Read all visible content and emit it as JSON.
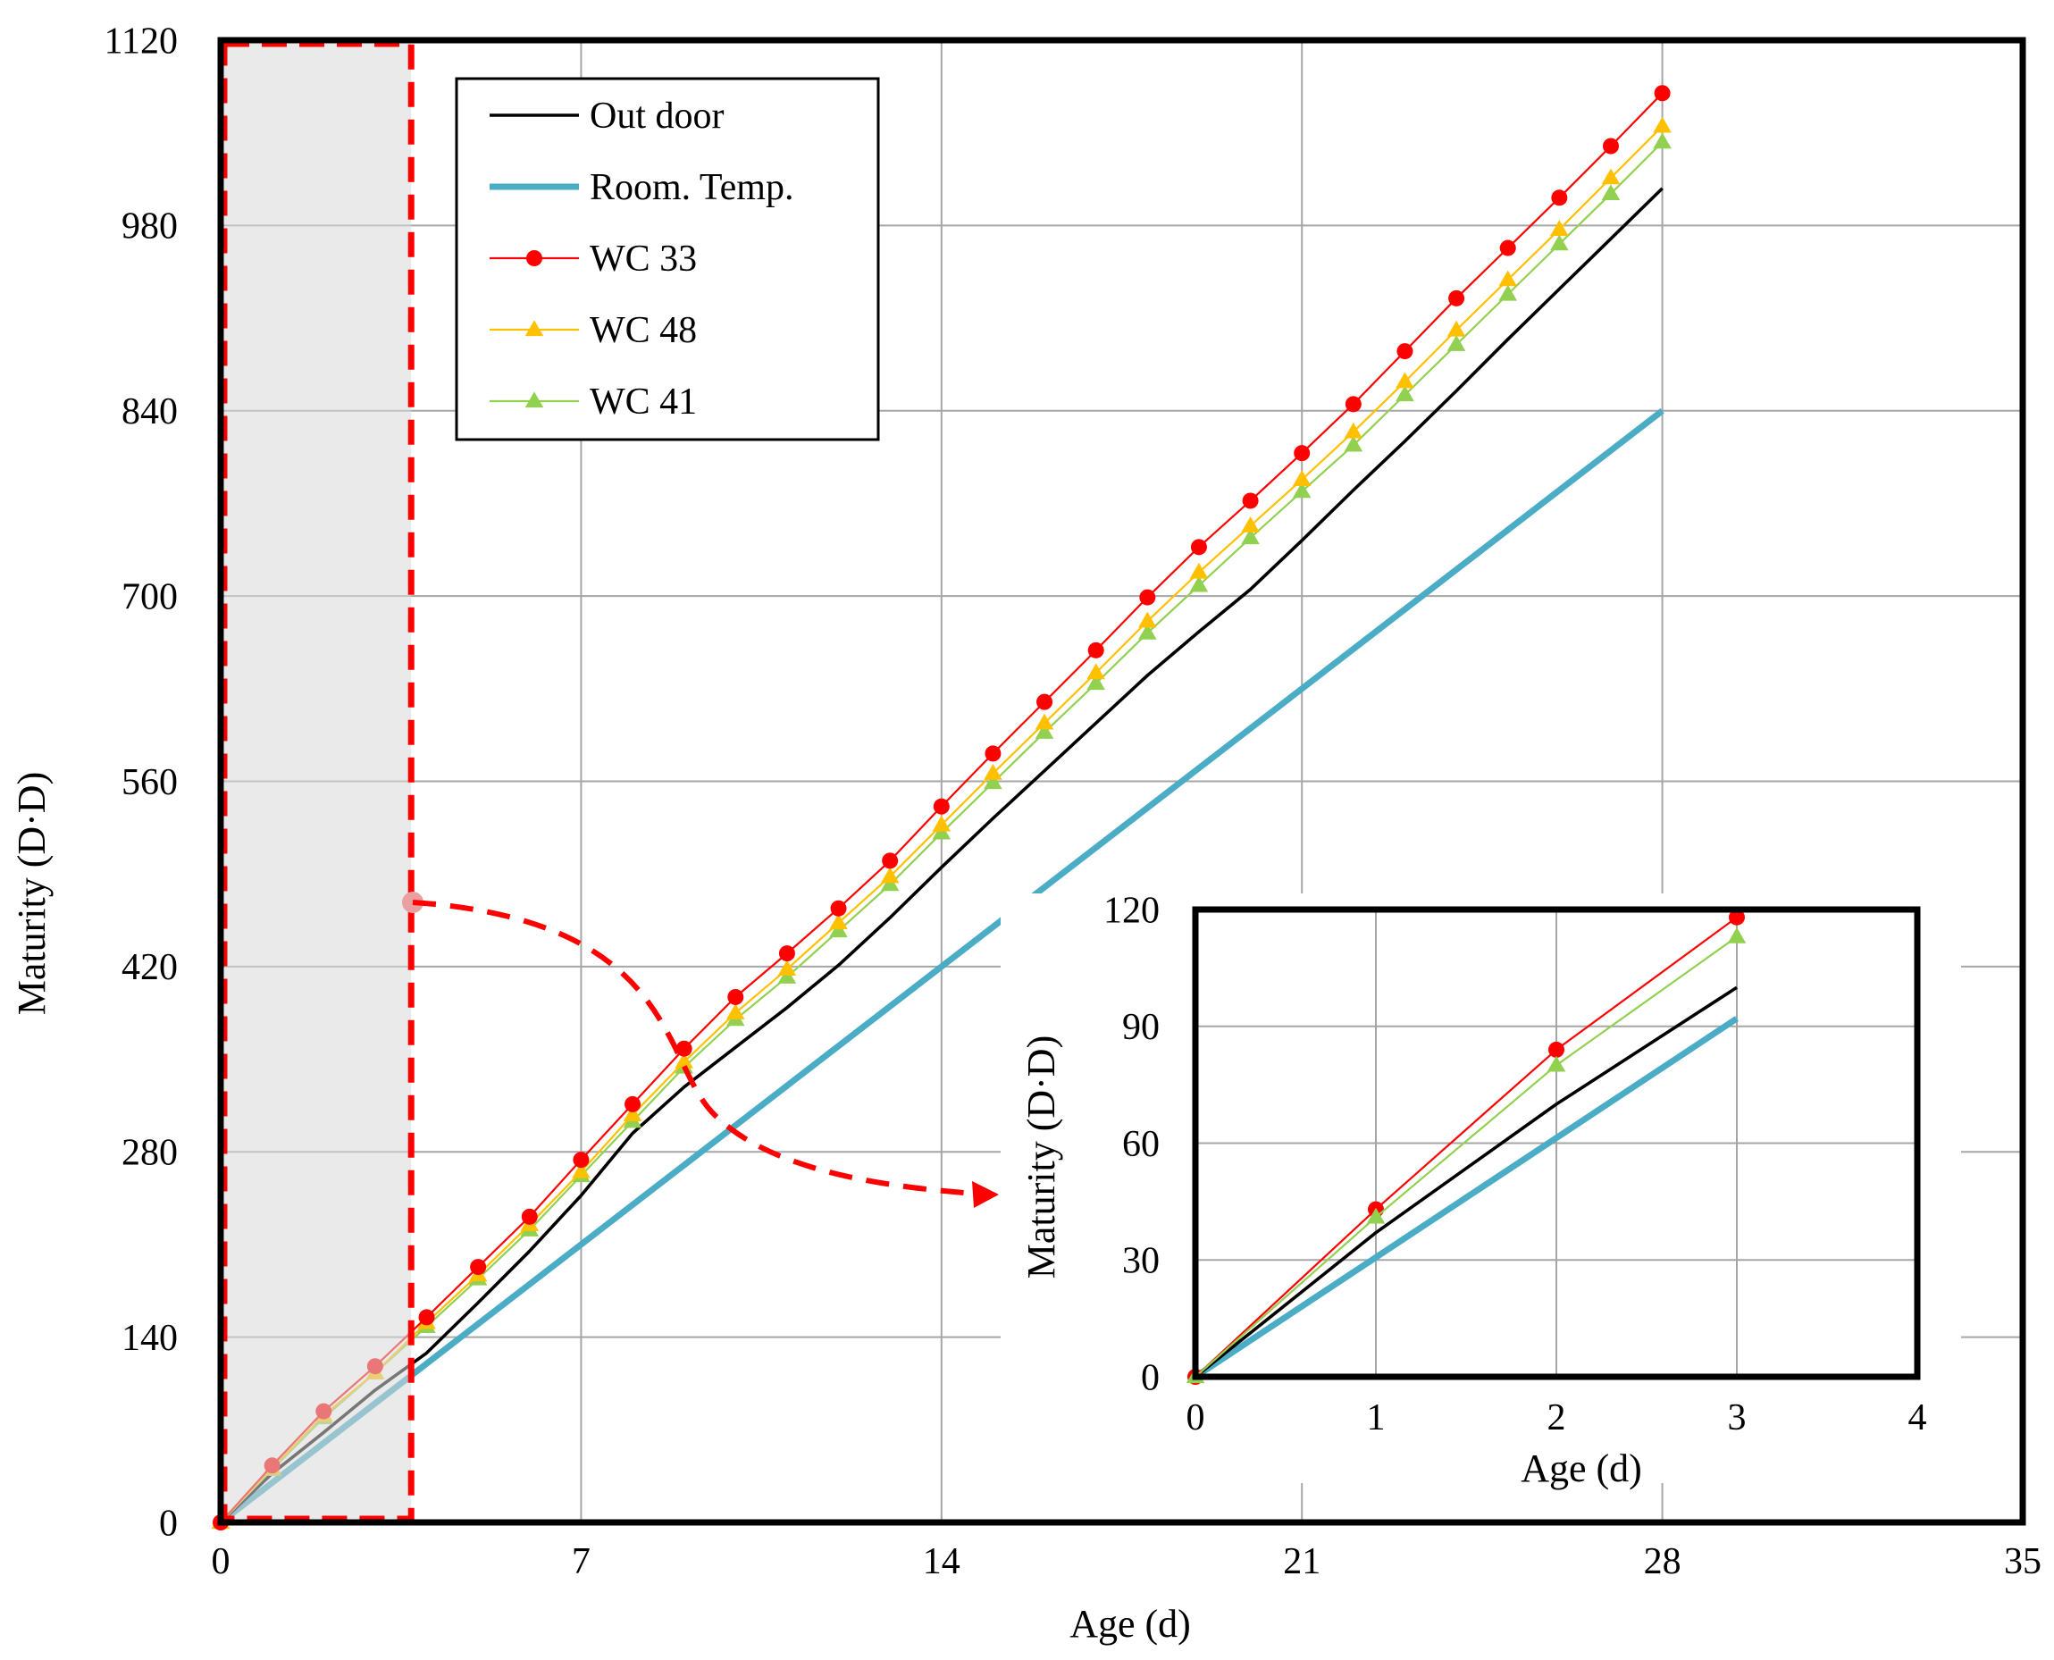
{
  "chart_data": [
    {
      "type": "line",
      "title": "",
      "xlabel": "Age (d)",
      "ylabel": "Maturity (D·D)",
      "xlim": [
        0,
        35
      ],
      "ylim": [
        0,
        1120
      ],
      "x_ticks": [
        0,
        7,
        14,
        21,
        28,
        35
      ],
      "y_ticks": [
        0,
        140,
        280,
        420,
        560,
        700,
        840,
        980,
        1120
      ],
      "grid": true,
      "legend": "top-left",
      "highlight_region": {
        "x_range": [
          0,
          3.7
        ],
        "y_range": [
          0,
          1120
        ]
      },
      "series": [
        {
          "name": "Out door",
          "color": "#000000",
          "marker": "none",
          "x": [
            0,
            1,
            2,
            3,
            4,
            5,
            6,
            7,
            8,
            9,
            10,
            11,
            12,
            13,
            14,
            15,
            16,
            17,
            18,
            19,
            20,
            21,
            22,
            23,
            24,
            25,
            26,
            27,
            28
          ],
          "y": [
            0,
            37,
            68,
            100,
            128,
            166,
            205,
            247,
            294,
            329,
            359,
            389,
            421,
            457,
            495,
            532,
            568,
            604,
            640,
            673,
            705,
            742,
            780,
            817,
            855,
            894,
            932,
            970,
            1008
          ]
        },
        {
          "name": "Room. Temp.",
          "color": "#4bacc6",
          "marker": "none",
          "x": [
            0,
            28
          ],
          "y": [
            0,
            840
          ]
        },
        {
          "name": "WC 33",
          "color": "#ff0000",
          "marker": "circle",
          "x": [
            0,
            1,
            2,
            3,
            4,
            5,
            6,
            7,
            8,
            9,
            10,
            11,
            12,
            13,
            14,
            15,
            16,
            17,
            18,
            19,
            20,
            21,
            22,
            23,
            24,
            25,
            26,
            27,
            28
          ],
          "y": [
            0,
            43,
            84,
            118,
            155,
            193,
            231,
            274,
            316,
            358,
            397,
            430,
            464,
            500,
            541,
            581,
            620,
            659,
            699,
            737,
            772,
            808,
            845,
            885,
            925,
            963,
            1001,
            1040,
            1080
          ]
        },
        {
          "name": "WC 48",
          "color": "#ffc000",
          "marker": "triangle",
          "x": [
            0,
            1,
            2,
            3,
            4,
            5,
            6,
            7,
            8,
            9,
            10,
            11,
            12,
            13,
            14,
            15,
            16,
            17,
            18,
            19,
            20,
            21,
            22,
            23,
            24,
            25,
            26,
            27,
            28
          ],
          "y": [
            0,
            41,
            81,
            113,
            151,
            187,
            225,
            265,
            308,
            348,
            385,
            418,
            453,
            488,
            527,
            566,
            604,
            642,
            681,
            718,
            753,
            788,
            824,
            862,
            901,
            939,
            977,
            1016,
            1055
          ]
        },
        {
          "name": "WC 41",
          "color": "#92d050",
          "marker": "triangle",
          "x": [
            0,
            1,
            2,
            3,
            4,
            5,
            6,
            7,
            8,
            9,
            10,
            11,
            12,
            13,
            14,
            15,
            16,
            17,
            18,
            19,
            20,
            21,
            22,
            23,
            24,
            25,
            26,
            27,
            28
          ],
          "y": [
            0,
            40,
            79,
            113,
            148,
            184,
            221,
            262,
            303,
            344,
            380,
            412,
            447,
            482,
            521,
            559,
            597,
            634,
            672,
            708,
            744,
            779,
            814,
            852,
            890,
            928,
            966,
            1004,
            1043
          ]
        }
      ]
    },
    {
      "type": "line",
      "title": "",
      "xlabel": "Age (d)",
      "ylabel": "Maturity (D·D)",
      "xlim": [
        0,
        4
      ],
      "ylim": [
        0,
        120
      ],
      "x_ticks": [
        0,
        1,
        2,
        3,
        4
      ],
      "y_ticks": [
        0,
        30,
        60,
        90,
        120
      ],
      "grid": true,
      "series": [
        {
          "name": "Out door",
          "color": "#000000",
          "marker": "none",
          "x": [
            0,
            1,
            2,
            3
          ],
          "y": [
            0,
            37,
            70,
            100
          ]
        },
        {
          "name": "Room. Temp.",
          "color": "#4bacc6",
          "marker": "none",
          "x": [
            0,
            3
          ],
          "y": [
            0,
            92
          ]
        },
        {
          "name": "WC 33",
          "color": "#ff0000",
          "marker": "circle",
          "x": [
            0,
            1,
            2,
            3
          ],
          "y": [
            0,
            43,
            84,
            118
          ]
        },
        {
          "name": "WC 41",
          "color": "#92d050",
          "marker": "triangle",
          "x": [
            0,
            1,
            2,
            3
          ],
          "y": [
            0,
            41,
            80,
            113
          ]
        }
      ]
    }
  ]
}
